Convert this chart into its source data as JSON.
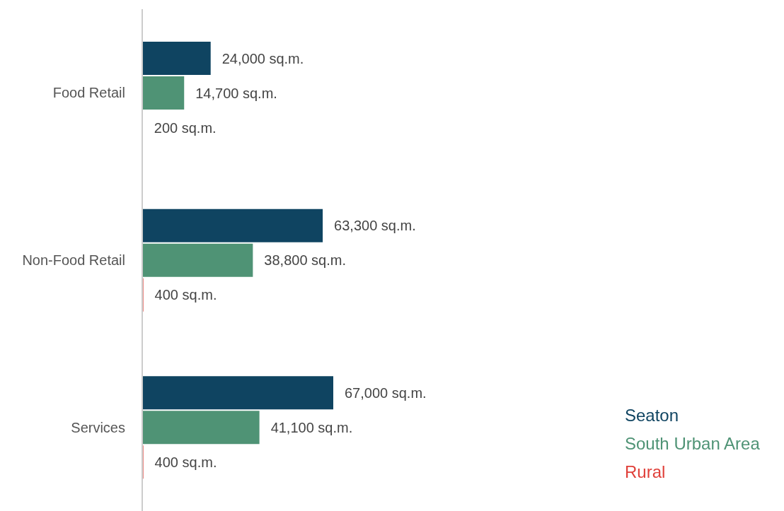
{
  "chart_data": {
    "type": "bar",
    "orientation": "horizontal",
    "categories": [
      "Food Retail",
      "Non-Food Retail",
      "Services"
    ],
    "series": [
      {
        "name": "Seaton",
        "color": "#0f4461",
        "values": [
          24000,
          63300,
          67000
        ],
        "value_labels": [
          "24,000 sq.m.",
          "63,300 sq.m.",
          "67,000 sq.m."
        ]
      },
      {
        "name": "South Urban Area",
        "color": "#4f9375",
        "values": [
          14700,
          38800,
          41100
        ],
        "value_labels": [
          "14,700 sq.m.",
          "38,800 sq.m.",
          "41,100 sq.m."
        ]
      },
      {
        "name": "Rural",
        "color": "#e0403a",
        "values": [
          200,
          400,
          400
        ],
        "value_labels": [
          "200 sq.m.",
          "400 sq.m.",
          "400 sq.m."
        ]
      }
    ],
    "legend": "bottom right"
  }
}
